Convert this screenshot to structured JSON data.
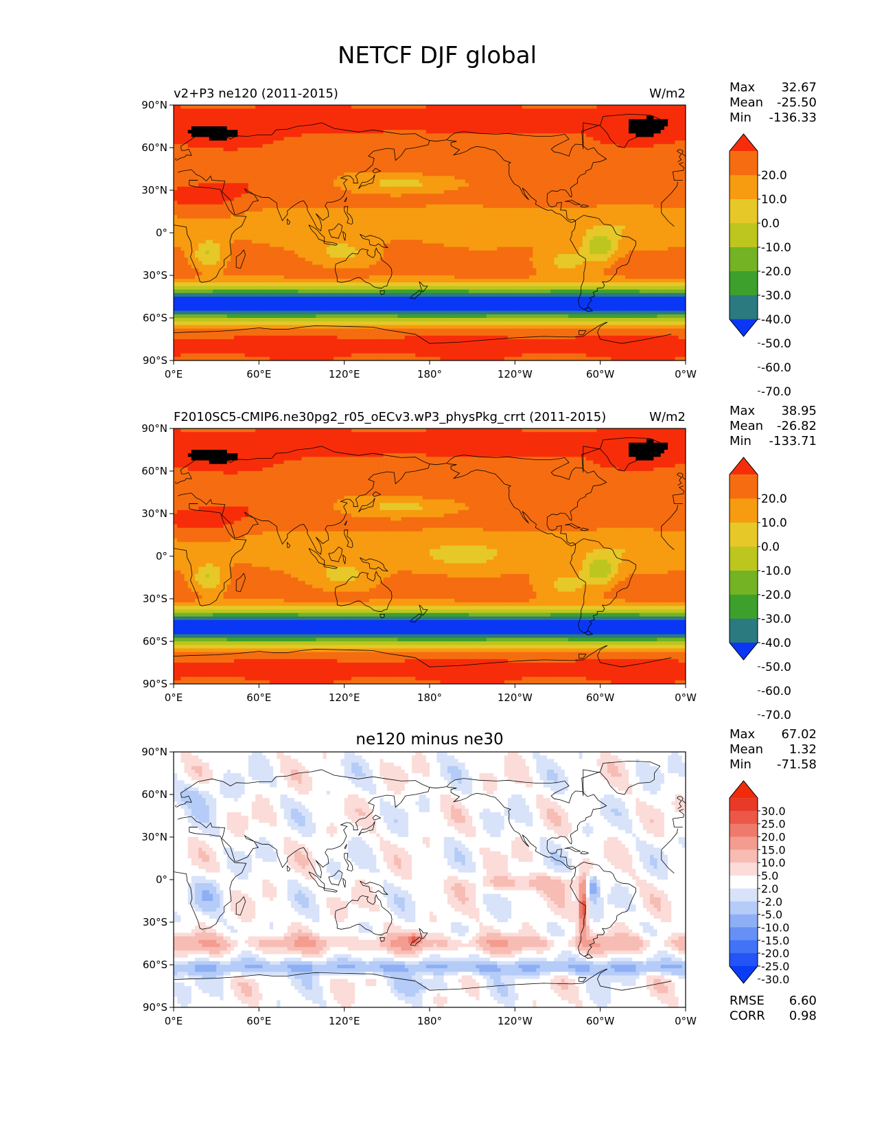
{
  "figure_title": "NETCF DJF global",
  "colors": {
    "model": [
      "#0a37f5",
      "#2b7a80",
      "#3ea02c",
      "#73b324",
      "#bdc61f",
      "#e6c828",
      "#f79b10",
      "#f56d10",
      "#f72d0a"
    ],
    "diff": [
      "#0a3cf5",
      "#2454f5",
      "#4272f5",
      "#6690f5",
      "#8eaef5",
      "#b4ccf7",
      "#d8e3fa",
      "#ffffff",
      "#fbdcd8",
      "#f7bcb4",
      "#f49c90",
      "#ef7a6c",
      "#eb5848",
      "#e83a28",
      "#f22a0a"
    ]
  },
  "chart_data": [
    {
      "type": "heatmap",
      "map_projection": "global lat-lon",
      "title_left": "v2+P3 ne120 (2011-2015)",
      "title_right": "W/m2",
      "x_tick_labels": [
        "0°E",
        "60°E",
        "120°E",
        "180°",
        "120°W",
        "60°W",
        "0°W"
      ],
      "y_tick_labels": [
        "90°N",
        "60°N",
        "30°N",
        "0°",
        "30°S",
        "60°S",
        "90°S"
      ],
      "xlim": [
        0,
        360
      ],
      "ylim": [
        -90,
        90
      ],
      "stats": [
        {
          "label": "Max",
          "value": "32.67"
        },
        {
          "label": "Mean",
          "value": "-25.50"
        },
        {
          "label": "Min",
          "value": "-136.33"
        }
      ],
      "colorbar": {
        "levels": [
          -70,
          -60,
          -50,
          -40,
          -30,
          -20,
          -10,
          0,
          10,
          20
        ],
        "tick_labels": [
          "20.0",
          "10.0",
          "0.0",
          "-10.0",
          "-20.0",
          "-30.0",
          "-40.0",
          "-50.0",
          "-60.0",
          "-70.0"
        ],
        "extend": "both"
      }
    },
    {
      "type": "heatmap",
      "map_projection": "global lat-lon",
      "title_left": "F2010SC5-CMIP6.ne30pg2_r05_oECv3.wP3_physPkg_crrt (2011-2015)",
      "title_right": "W/m2",
      "x_tick_labels": [
        "0°E",
        "60°E",
        "120°E",
        "180°",
        "120°W",
        "60°W",
        "0°W"
      ],
      "y_tick_labels": [
        "90°N",
        "60°N",
        "30°N",
        "0°",
        "30°S",
        "60°S",
        "90°S"
      ],
      "xlim": [
        0,
        360
      ],
      "ylim": [
        -90,
        90
      ],
      "stats": [
        {
          "label": "Max",
          "value": "38.95"
        },
        {
          "label": "Mean",
          "value": "-26.82"
        },
        {
          "label": "Min",
          "value": "-133.71"
        }
      ],
      "colorbar": {
        "levels": [
          -70,
          -60,
          -50,
          -40,
          -30,
          -20,
          -10,
          0,
          10,
          20
        ],
        "tick_labels": [
          "20.0",
          "10.0",
          "0.0",
          "-10.0",
          "-20.0",
          "-30.0",
          "-40.0",
          "-50.0",
          "-60.0",
          "-70.0"
        ],
        "extend": "both"
      }
    },
    {
      "type": "heatmap",
      "map_projection": "global lat-lon",
      "title_center": "ne120 minus ne30",
      "x_tick_labels": [
        "0°E",
        "60°E",
        "120°E",
        "180°",
        "120°W",
        "60°W",
        "0°W"
      ],
      "y_tick_labels": [
        "90°N",
        "60°N",
        "30°N",
        "0°",
        "30°S",
        "60°S",
        "90°S"
      ],
      "xlim": [
        0,
        360
      ],
      "ylim": [
        -90,
        90
      ],
      "stats": [
        {
          "label": "Max",
          "value": "67.02"
        },
        {
          "label": "Mean",
          "value": "1.32"
        },
        {
          "label": "Min",
          "value": "-71.58"
        }
      ],
      "colorbar": {
        "levels": [
          -30,
          -25,
          -20,
          -15,
          -10,
          -5,
          -2,
          2,
          5,
          10,
          15,
          20,
          25,
          30
        ],
        "tick_labels": [
          "30.0",
          "25.0",
          "20.0",
          "15.0",
          "10.0",
          "5.0",
          "2.0",
          "-2.0",
          "-5.0",
          "-10.0",
          "-15.0",
          "-20.0",
          "-25.0",
          "-30.0"
        ],
        "extend": "both"
      },
      "metrics": [
        {
          "label": "RMSE",
          "value": "6.60"
        },
        {
          "label": "CORR",
          "value": "0.98"
        }
      ]
    }
  ]
}
